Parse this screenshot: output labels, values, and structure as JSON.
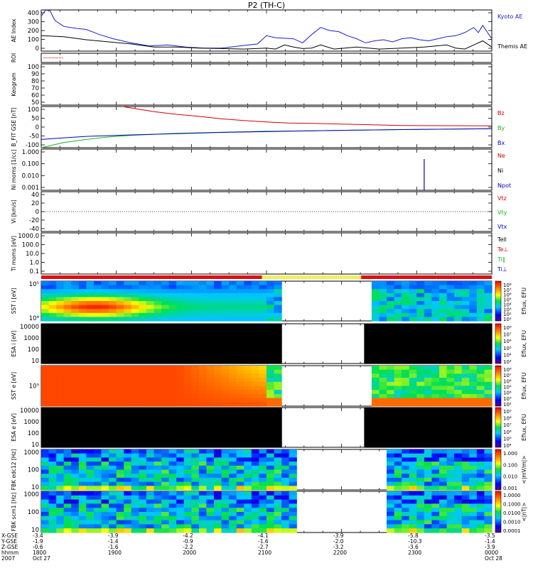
{
  "title": "P2 (TH-C)",
  "colors": {
    "kyoto": "#1c1cc8",
    "themis": "#000000",
    "red": "#d40000",
    "green": "#18b418",
    "blue": "#0000c8",
    "roi_bar_red": "#e01010",
    "roi_bar_yellow": "#f0f060",
    "dark": "#000000"
  },
  "chart_data": [
    {
      "type": "line",
      "id": "ae",
      "ylabel": "AE Index",
      "yticks": [
        "400",
        "300",
        "200",
        "100",
        "0"
      ],
      "ylim": [
        0,
        400
      ],
      "series": [
        {
          "name": "Kyoto AE",
          "color": "#1c1cc8",
          "x": [
            0,
            0.01,
            0.02,
            0.03,
            0.05,
            0.08,
            0.1,
            0.13,
            0.16,
            0.2,
            0.24,
            0.28,
            0.32,
            0.36,
            0.4,
            0.44,
            0.48,
            0.5,
            0.52,
            0.56,
            0.58,
            0.6,
            0.62,
            0.64,
            0.66,
            0.68,
            0.7,
            0.72,
            0.74,
            0.76,
            0.78,
            0.8,
            0.82,
            0.84,
            0.86,
            0.88,
            0.9,
            0.92,
            0.94,
            0.96,
            0.97,
            0.98,
            1.0
          ],
          "y": [
            340,
            400,
            390,
            300,
            240,
            220,
            210,
            160,
            120,
            80,
            50,
            60,
            40,
            30,
            30,
            50,
            70,
            150,
            130,
            120,
            80,
            160,
            230,
            200,
            190,
            150,
            120,
            80,
            100,
            110,
            90,
            120,
            130,
            110,
            100,
            120,
            140,
            150,
            180,
            230,
            180,
            250,
            120
          ]
        },
        {
          "name": "Themis AE",
          "color": "#000000",
          "x": [
            0,
            0.05,
            0.1,
            0.15,
            0.2,
            0.25,
            0.3,
            0.35,
            0.4,
            0.45,
            0.5,
            0.52,
            0.54,
            0.56,
            0.58,
            0.6,
            0.62,
            0.65,
            0.7,
            0.75,
            0.8,
            0.85,
            0.9,
            0.92,
            0.94,
            0.96,
            0.98,
            1.0
          ],
          "y": [
            150,
            140,
            110,
            90,
            70,
            40,
            40,
            30,
            25,
            20,
            30,
            20,
            60,
            40,
            25,
            30,
            60,
            20,
            40,
            20,
            30,
            40,
            60,
            30,
            20,
            60,
            100,
            40
          ]
        }
      ],
      "legend": [
        "Kyoto AE",
        "Themis AE"
      ]
    },
    {
      "type": "line",
      "id": "roi",
      "ylabel": "ROI"
    },
    {
      "type": "line",
      "id": "keogram",
      "ylabel": "Keogram",
      "yticks": [
        "100",
        "90",
        "80",
        "70",
        "60",
        "50"
      ],
      "ylim": [
        45,
        100
      ]
    },
    {
      "type": "line",
      "id": "bfield",
      "ylabel": "B_FIT GSE [nT]",
      "yticks": [
        "100",
        "50",
        "0",
        "-50",
        "-100"
      ],
      "ylim": [
        -100,
        100
      ],
      "series": [
        {
          "name": "Bz",
          "color": "#d40000",
          "x": [
            0.18,
            0.25,
            0.3,
            0.35,
            0.4,
            0.45,
            0.5,
            0.55,
            0.6,
            0.7,
            0.8,
            0.9,
            1.0
          ],
          "y": [
            100,
            75,
            62,
            52,
            40,
            32,
            25,
            20,
            18,
            13,
            8,
            7,
            6
          ]
        },
        {
          "name": "By",
          "color": "#18b418",
          "x": [
            0,
            0.02,
            0.05,
            0.1,
            0.15,
            0.2,
            0.3,
            0.4,
            0.5,
            0.6,
            0.7,
            0.8,
            0.9,
            1.0
          ],
          "y": [
            -100,
            -90,
            -75,
            -60,
            -48,
            -40,
            -30,
            -25,
            -20,
            -18,
            -15,
            -12,
            -10,
            -8
          ]
        },
        {
          "name": "Bx",
          "color": "#0000c8",
          "x": [
            0,
            0.05,
            0.1,
            0.2,
            0.3,
            0.4,
            0.5,
            0.6,
            0.7,
            0.8,
            0.9,
            1.0
          ],
          "y": [
            -60,
            -52,
            -45,
            -38,
            -32,
            -26,
            -22,
            -18,
            -15,
            -12,
            -10,
            -8
          ]
        }
      ],
      "legend": [
        "Bz",
        "By",
        "Bx"
      ]
    },
    {
      "type": "line",
      "id": "density",
      "ylabel": "Ni moms [1/cc]",
      "yticks": [
        "1.000",
        "0.100",
        "0.010",
        "0.001"
      ],
      "series": [
        {
          "name": "Npot",
          "color": "#0000c8",
          "x": [
            0.85
          ],
          "y": [
            0.18
          ]
        }
      ],
      "legend": [
        "Ne",
        "Ni",
        "Npot"
      ]
    },
    {
      "type": "line",
      "id": "velocity",
      "ylabel": "Vi [km/s]",
      "yticks": [
        "40",
        "20",
        "0",
        "-20",
        "-40"
      ],
      "ylim": [
        -50,
        50
      ],
      "legend": [
        "Vtz",
        "Vty",
        "Vtx"
      ]
    },
    {
      "type": "line",
      "id": "temperature",
      "ylabel": "Ti moms [eV]",
      "yticks": [
        "1000.0",
        "100.0",
        "10.0",
        "1.0",
        "0.1"
      ],
      "legend": [
        "Tell",
        "Te⊥",
        "Ti∥",
        "Ti⊥"
      ]
    },
    {
      "type": "heatmap",
      "id": "sst_i",
      "ylabel": "SST i [eV]",
      "yticks": [
        "10⁵",
        "10⁴"
      ],
      "colorbar_label": "Eflux, EFU",
      "colorbar_ticks": [
        "10⁸",
        "10⁷",
        "10⁶",
        "10⁵",
        "10⁴",
        "10³",
        "10²",
        "10¹"
      ],
      "data_gaps": [
        [
          0.53,
          0.74
        ]
      ]
    },
    {
      "type": "heatmap",
      "id": "esa_i",
      "ylabel": "ESA i [eV]",
      "yticks": [
        "10000",
        "1000",
        "100",
        "10"
      ],
      "colorbar_label": "Eflux, EFU",
      "colorbar_ticks": [
        "10⁸",
        "10⁷",
        "10⁶",
        "10⁵",
        "10⁴",
        "10³"
      ],
      "data_gaps": [
        [
          0.535,
          0.72
        ]
      ]
    },
    {
      "type": "heatmap",
      "id": "sst_e",
      "ylabel": "SST e [eV]",
      "yticks": [
        "10⁵"
      ],
      "colorbar_label": "Eflux, EFU",
      "colorbar_ticks": [
        "10⁸",
        "10⁷",
        "10⁶",
        "10⁵",
        "10⁴",
        "10³",
        "10²"
      ],
      "data_gaps": [
        [
          0.53,
          0.74
        ]
      ]
    },
    {
      "type": "heatmap",
      "id": "esa_e",
      "ylabel": "ESA e [eV]",
      "yticks": [
        "10000",
        "1000",
        "100",
        "10"
      ],
      "colorbar_label": "Eflux, EFU",
      "colorbar_ticks": [
        "10⁹",
        "10⁸",
        "10⁷",
        "10⁶",
        "10⁵",
        "10⁴"
      ],
      "data_gaps": [
        [
          0.53,
          0.715
        ]
      ]
    },
    {
      "type": "heatmap",
      "id": "fbk_edc",
      "ylabel": "FBK edc12 [Hz]",
      "yticks": [
        "1000",
        "100",
        "10"
      ],
      "colorbar_label": "<|mV/m|>",
      "colorbar_ticks": [
        "1.000",
        "0.100",
        "0.010",
        "0.001"
      ],
      "data_gaps": [
        [
          0.57,
          0.77
        ]
      ]
    },
    {
      "type": "heatmap",
      "id": "fbk_scm",
      "ylabel": "FBK scm1 [Hz]",
      "yticks": [
        "1000",
        "100",
        "10"
      ],
      "colorbar_label": "<|nT|>",
      "colorbar_ticks": [
        "1.0000",
        "0.1000",
        "0.0100",
        "0.0010",
        "0.0001"
      ],
      "data_gaps": [
        [
          0.57,
          0.77
        ]
      ]
    }
  ],
  "roi_bar": [
    {
      "from": 0.0,
      "to": 0.49,
      "color": "red"
    },
    {
      "from": 0.49,
      "to": 0.71,
      "color": "yellow"
    },
    {
      "from": 0.71,
      "to": 1.0,
      "color": "red"
    }
  ],
  "time_axis": {
    "row_labels": [
      "X-GSE",
      "Y-GSE",
      "Z-GSE",
      "hhmm",
      "2007"
    ],
    "ticks": [
      {
        "frac": 0.0,
        "lines": [
          "-3.4",
          "-1.9",
          "-0.6",
          "1800",
          "Oct 27"
        ]
      },
      {
        "frac": 0.167,
        "lines": [
          "-3.9",
          "-1.4",
          "-1.6",
          "1900",
          ""
        ]
      },
      {
        "frac": 0.333,
        "lines": [
          "-4.2",
          "-0.9",
          "-2.2",
          "2000",
          ""
        ]
      },
      {
        "frac": 0.5,
        "lines": [
          "-4.1",
          "-1.6",
          "-2.7",
          "2100",
          ""
        ]
      },
      {
        "frac": 0.667,
        "lines": [
          "-3.9",
          "-2.0",
          "-3.2",
          "2200",
          ""
        ]
      },
      {
        "frac": 0.833,
        "lines": [
          "-5.8",
          "-10.3",
          "-3.6",
          "2300",
          ""
        ]
      },
      {
        "frac": 1.0,
        "lines": [
          "-3.5",
          "-1.4",
          "-3.9",
          "0000",
          "Oct 28"
        ]
      }
    ]
  }
}
